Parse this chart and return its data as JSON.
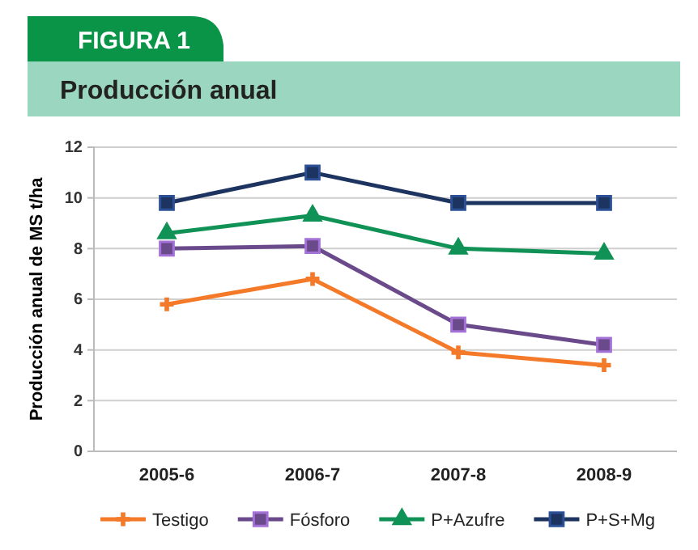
{
  "chart_data": {
    "type": "line",
    "title": "Producción anual",
    "annotations": [
      "FIGURA 1"
    ],
    "ylabel": "Producción anual de MS t/ha",
    "categories": [
      "2005-6",
      "2006-7",
      "2007-8",
      "2008-9"
    ],
    "series": [
      {
        "name": "Testigo",
        "color": "#f47a2a",
        "marker": "cross",
        "values": [
          5.8,
          6.8,
          3.9,
          3.4
        ]
      },
      {
        "name": "Fósforo",
        "color": "#6b4a8c",
        "marker": "square",
        "values": [
          8.0,
          8.1,
          5.0,
          4.2
        ]
      },
      {
        "name": "P+Azufre",
        "color": "#109256",
        "marker": "triangle",
        "values": [
          8.6,
          9.3,
          8.0,
          7.8
        ]
      },
      {
        "name": "P+S+Mg",
        "color": "#1d3461",
        "marker": "square",
        "values": [
          9.8,
          11.0,
          9.8,
          9.8
        ]
      }
    ],
    "ylim": [
      0,
      12
    ],
    "yticks": [
      0,
      2,
      4,
      6,
      8,
      10,
      12
    ],
    "grid": "y",
    "legend": "bottom",
    "line_style": "solid"
  }
}
